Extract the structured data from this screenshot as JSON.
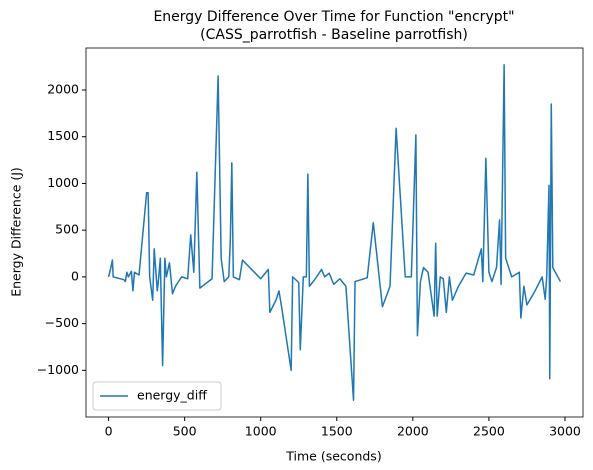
{
  "chart_data": {
    "type": "line",
    "title": [
      "Energy Difference Over Time for Function \"encrypt\"",
      "(CASS_parrotfish - Baseline parrotfish)"
    ],
    "xlabel": "Time (seconds)",
    "ylabel": "Energy Difference (J)",
    "legend": "lower left",
    "xlim": [
      -148.5,
      3118.5
    ],
    "ylim": [
      -1499.5,
      2449.5
    ],
    "xticks": [
      0,
      500,
      1000,
      1500,
      2000,
      2500,
      3000
    ],
    "yticks": [
      {
        "value": -1000,
        "label": "−1000"
      },
      {
        "value": -500,
        "label": "−500"
      },
      0,
      500,
      1000,
      1500,
      2000
    ],
    "x": [
      0,
      15,
      25,
      30,
      100,
      110,
      120,
      130,
      150,
      160,
      170,
      200,
      250,
      260,
      270,
      290,
      300,
      320,
      330,
      340,
      355,
      370,
      380,
      400,
      420,
      440,
      480,
      520,
      540,
      560,
      580,
      600,
      680,
      720,
      740,
      760,
      790,
      800,
      810,
      820,
      860,
      880,
      1000,
      1050,
      1060,
      1100,
      1120,
      1140,
      1200,
      1210,
      1250,
      1260,
      1280,
      1300,
      1310,
      1320,
      1350,
      1400,
      1420,
      1450,
      1480,
      1520,
      1560,
      1610,
      1620,
      1700,
      1740,
      1800,
      1850,
      1890,
      1950,
      1990,
      2020,
      2030,
      2050,
      2070,
      2100,
      2140,
      2150,
      2160,
      2180,
      2200,
      2220,
      2240,
      2260,
      2300,
      2350,
      2400,
      2450,
      2460,
      2480,
      2500,
      2520,
      2550,
      2570,
      2580,
      2600,
      2610,
      2650,
      2700,
      2710,
      2730,
      2750,
      2800,
      2850,
      2870,
      2880,
      2895,
      2900,
      2910,
      2920,
      2970
    ],
    "series": [
      {
        "name": "energy_diff",
        "color": "#1f77b4",
        "values": [
          0,
          100,
          180,
          0,
          -30,
          -50,
          50,
          0,
          60,
          -150,
          50,
          20,
          900,
          900,
          0,
          -250,
          300,
          -150,
          0,
          200,
          -950,
          200,
          0,
          150,
          -180,
          -100,
          0,
          -20,
          450,
          50,
          1120,
          -120,
          -20,
          2150,
          200,
          -50,
          0,
          380,
          1220,
          0,
          -30,
          180,
          -20,
          80,
          -380,
          -250,
          -150,
          -350,
          -1000,
          0,
          -60,
          -780,
          0,
          0,
          1100,
          -100,
          -40,
          80,
          0,
          40,
          -80,
          -20,
          -100,
          -1320,
          -50,
          -10,
          580,
          -320,
          -100,
          1590,
          0,
          0,
          1520,
          -630,
          -50,
          100,
          50,
          -420,
          360,
          -420,
          0,
          -20,
          -380,
          0,
          -250,
          -100,
          40,
          20,
          300,
          -50,
          1270,
          50,
          -50,
          100,
          610,
          -80,
          2270,
          200,
          0,
          50,
          -440,
          -100,
          -300,
          -160,
          0,
          -240,
          0,
          980,
          -1090,
          1850,
          100,
          -50
        ]
      }
    ]
  }
}
